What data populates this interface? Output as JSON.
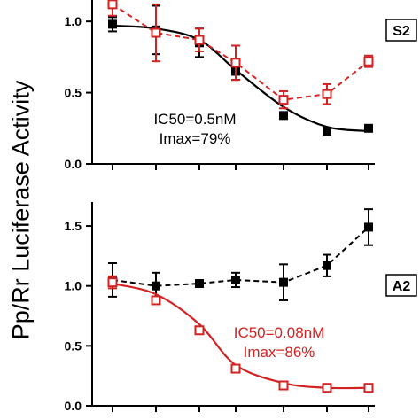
{
  "figure": {
    "ylabel": "Pp/Rr Luciferase Activity"
  },
  "chart_data": [
    {
      "type": "line",
      "panel_label": "S2",
      "ylim": [
        0,
        1.2
      ],
      "yticks": [
        0.0,
        0.5,
        1.0
      ],
      "ytick_labels": [
        "0.0",
        "0.5",
        "1.0"
      ],
      "x_positions": 7,
      "annotation": [
        "IC50=0.5nM",
        "Imax=79%"
      ],
      "annotation_color": "#000000",
      "series": [
        {
          "style": "black-solid-filled-square",
          "color": "#000000",
          "values": [
            0.98,
            0.94,
            0.85,
            0.65,
            0.34,
            0.23,
            0.25
          ],
          "errors": [
            0.05,
            0.17,
            0.1,
            0.06,
            0.02,
            0.02,
            0.02
          ],
          "fit": [
            0.97,
            0.95,
            0.87,
            0.66,
            0.4,
            0.26,
            0.23
          ]
        },
        {
          "style": "red-dashed-open-square",
          "color": "#d22222",
          "values": [
            1.12,
            0.92,
            0.87,
            0.71,
            0.45,
            0.49,
            0.72
          ],
          "errors": [
            0.08,
            0.2,
            0.08,
            0.12,
            0.06,
            0.07,
            0.04
          ]
        }
      ]
    },
    {
      "type": "line",
      "panel_label": "A2",
      "ylim": [
        0,
        1.7
      ],
      "yticks": [
        0.0,
        0.5,
        1.0,
        1.5
      ],
      "ytick_labels": [
        "0.0",
        "0.5",
        "1.0",
        "1.5"
      ],
      "x_positions": 7,
      "annotation": [
        "IC50=0.08nM",
        "Imax=86%"
      ],
      "annotation_color": "#d22222",
      "series": [
        {
          "style": "black-dashed-filled-square",
          "color": "#000000",
          "values": [
            1.05,
            1.0,
            1.02,
            1.05,
            1.03,
            1.17,
            1.49
          ],
          "errors": [
            0.14,
            0.11,
            0.02,
            0.06,
            0.15,
            0.09,
            0.15
          ]
        },
        {
          "style": "red-solid-open-square",
          "color": "#d22222",
          "values": [
            1.03,
            0.88,
            0.63,
            0.31,
            0.17,
            0.15,
            0.15
          ],
          "errors": [
            0.05,
            0.02,
            0.02,
            0.02,
            0.02,
            0.02,
            0.02
          ],
          "fit": [
            1.02,
            0.93,
            0.68,
            0.34,
            0.19,
            0.15,
            0.15
          ]
        }
      ]
    }
  ]
}
